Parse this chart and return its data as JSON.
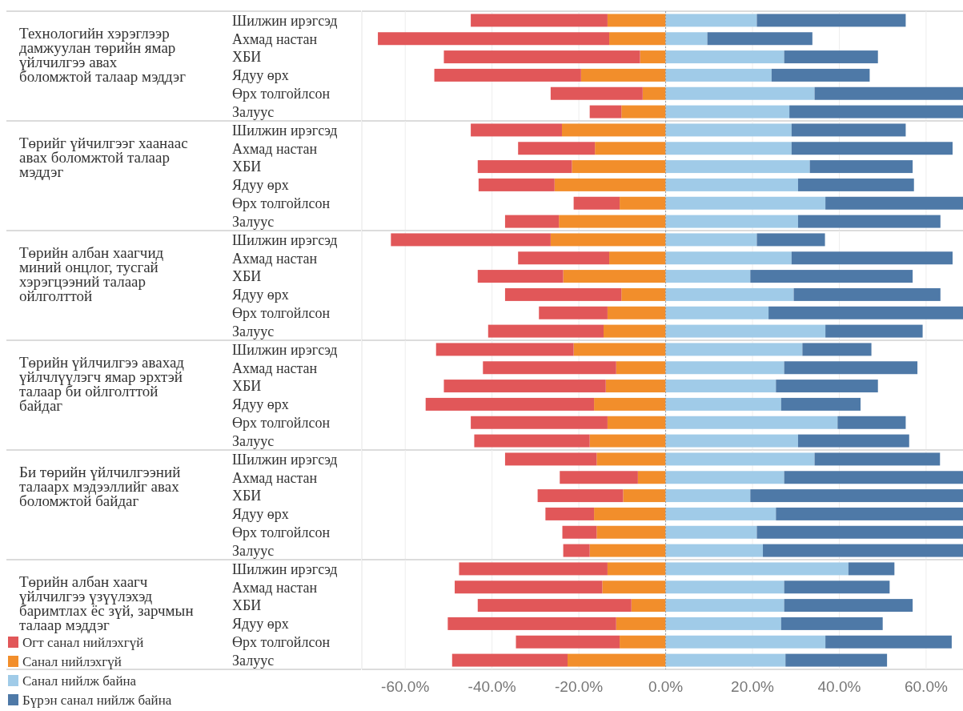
{
  "chart_data": [
    {
      "type": "bar",
      "orientation": "horizontal",
      "stacked": true,
      "title": "Технологийн хэрэглээр\nдамжуулан төрийн ямар\nүйлчилгээ авах\nболомжтой талаар мэддэг",
      "categories": [
        "Шилжин ирэгсэд",
        "Ахмад настан",
        "ХБИ",
        "Ядуу өрх",
        "Өрх толгойлсон",
        "Залуус"
      ],
      "series": [
        {
          "color": "#f28e2b",
          "values": [
            -13.4,
            -13.0,
            -5.9,
            -19.5,
            -5.3,
            -10.2
          ]
        },
        {
          "color": "#e15759",
          "values": [
            -31.5,
            -53.3,
            -45.2,
            -33.8,
            -21.2,
            -7.3
          ]
        },
        {
          "color": "#a0cbe8",
          "values": [
            21.0,
            9.6,
            27.3,
            24.4,
            34.3,
            28.5
          ]
        },
        {
          "color": "#4e79a7",
          "values": [
            34.3,
            24.2,
            21.6,
            22.6,
            34.2,
            40.0
          ]
        }
      ],
      "xlim": [
        -70,
        68.5
      ],
      "xticks": [
        -60,
        -40,
        -20,
        0,
        20,
        40,
        60
      ],
      "grid": "x",
      "tick_labels": "y",
      "legend": false,
      "ref_lines": [
        {
          "axis": "x",
          "value": 0,
          "color": "#999999",
          "line_style": "dotted"
        }
      ]
    },
    {
      "type": "bar",
      "orientation": "horizontal",
      "stacked": true,
      "title": "Төрийг үйчилгээг хаанаас\nавах боломжтой талаар\nмэддэг",
      "categories": [
        "Шилжин ирэгсэд",
        "Ахмад настан",
        "ХБИ",
        "Ядуу өрх",
        "Өрх толгойлсон",
        "Залуус"
      ],
      "series": [
        {
          "color": "#f28e2b",
          "values": [
            -23.9,
            -16.3,
            -21.6,
            -25.6,
            -10.6,
            -24.6
          ]
        },
        {
          "color": "#e15759",
          "values": [
            -21.0,
            -17.7,
            -21.7,
            -17.5,
            -10.6,
            -12.4
          ]
        },
        {
          "color": "#a0cbe8",
          "values": [
            29.0,
            29.0,
            33.2,
            30.5,
            36.8,
            30.5
          ]
        },
        {
          "color": "#4e79a7",
          "values": [
            26.3,
            37.1,
            23.7,
            26.7,
            31.7,
            32.8
          ]
        }
      ],
      "xlim": [
        -70,
        68.5
      ],
      "xticks": [
        -60,
        -40,
        -20,
        0,
        20,
        40,
        60
      ],
      "grid": "x",
      "tick_labels": "y",
      "legend": false,
      "ref_lines": [
        {
          "axis": "x",
          "value": 0,
          "color": "#999999",
          "line_style": "dotted"
        }
      ]
    },
    {
      "type": "bar",
      "orientation": "horizontal",
      "stacked": true,
      "title": "Төрийн албан хаагчид\nминий онцлог, тусгай\nхэрэгцээний талаар\nойлголттой",
      "categories": [
        "Шилжин ирэгсэд",
        "Ахмад настан",
        "ХБИ",
        "Ядуу өрх",
        "Өрх толгойлсон",
        "Залуус"
      ],
      "series": [
        {
          "color": "#f28e2b",
          "values": [
            -26.5,
            -13.0,
            -23.6,
            -10.2,
            -13.4,
            -14.3
          ]
        },
        {
          "color": "#e15759",
          "values": [
            -36.8,
            -21.0,
            -19.7,
            -26.8,
            -15.8,
            -26.6
          ]
        },
        {
          "color": "#a0cbe8",
          "values": [
            21.0,
            29.0,
            19.5,
            29.5,
            23.7,
            36.8
          ]
        },
        {
          "color": "#4e79a7",
          "values": [
            15.7,
            37.1,
            37.4,
            33.8,
            44.8,
            22.4
          ]
        }
      ],
      "xlim": [
        -70,
        68.5
      ],
      "xticks": [
        -60,
        -40,
        -20,
        0,
        20,
        40,
        60
      ],
      "grid": "x",
      "tick_labels": "y",
      "legend": false,
      "ref_lines": [
        {
          "axis": "x",
          "value": 0,
          "color": "#999999",
          "line_style": "dotted"
        }
      ]
    },
    {
      "type": "bar",
      "orientation": "horizontal",
      "stacked": true,
      "title": "Төрийн үйлчилгээ авахад\nүйлчлүүлэгч ямар эрхтэй\nталаар би ойлголттой\nбайдаг",
      "categories": [
        "Шилжин ирэгсэд",
        "Ахмад настан",
        "ХБИ",
        "Ядуу өрх",
        "Өрх толгойлсон",
        "Залуус"
      ],
      "series": [
        {
          "color": "#f28e2b",
          "values": [
            -21.2,
            -11.4,
            -13.8,
            -16.5,
            -13.4,
            -17.5
          ]
        },
        {
          "color": "#e15759",
          "values": [
            -31.7,
            -30.7,
            -37.3,
            -38.8,
            -31.5,
            -26.6
          ]
        },
        {
          "color": "#a0cbe8",
          "values": [
            31.5,
            27.3,
            25.4,
            26.6,
            39.6,
            30.5
          ]
        },
        {
          "color": "#4e79a7",
          "values": [
            15.9,
            30.7,
            23.5,
            18.3,
            15.7,
            25.6
          ]
        }
      ],
      "xlim": [
        -70,
        68.5
      ],
      "xticks": [
        -60,
        -40,
        -20,
        0,
        20,
        40,
        60
      ],
      "grid": "x",
      "tick_labels": "y",
      "legend": false,
      "ref_lines": [
        {
          "axis": "x",
          "value": 0,
          "color": "#999999",
          "line_style": "dotted"
        }
      ]
    },
    {
      "type": "bar",
      "orientation": "horizontal",
      "stacked": true,
      "title": "Би төрийн үйлчилгээний\nталаарх мэдээллийг авах\nболомжтой байдаг",
      "categories": [
        "Шилжин ирэгсэд",
        "Ахмад настан",
        "ХБИ",
        "Ядуу өрх",
        "Өрх толгойлсон",
        "Залуус"
      ],
      "series": [
        {
          "color": "#f28e2b",
          "values": [
            -15.9,
            -6.4,
            -9.8,
            -16.5,
            -15.9,
            -17.5
          ]
        },
        {
          "color": "#e15759",
          "values": [
            -21.1,
            -18.0,
            -19.7,
            -11.2,
            -7.9,
            -6.1
          ]
        },
        {
          "color": "#a0cbe8",
          "values": [
            34.3,
            27.3,
            19.5,
            25.4,
            21.0,
            22.4
          ]
        },
        {
          "color": "#4e79a7",
          "values": [
            28.9,
            41.2,
            49.0,
            43.1,
            47.5,
            46.1
          ]
        }
      ],
      "xlim": [
        -70,
        68.5
      ],
      "xticks": [
        -60,
        -40,
        -20,
        0,
        20,
        40,
        60
      ],
      "grid": "x",
      "tick_labels": "y",
      "legend": false,
      "ref_lines": [
        {
          "axis": "x",
          "value": 0,
          "color": "#999999",
          "line_style": "dotted"
        }
      ]
    },
    {
      "type": "bar",
      "orientation": "horizontal",
      "stacked": true,
      "title": "Төрийн албан хаагч\nүйлчилгээ үзүүлэхэд\nбаримтлах ёс зүй, зарчмын\nталаар мэддэг",
      "categories": [
        "Шилжин ирэгсэд",
        "Ахмад настан",
        "ХБИ",
        "Ядуу өрх",
        "Өрх толгойлсон",
        "Залуус"
      ],
      "series": [
        {
          "name": "Санал нийлэхгүй",
          "color": "#f28e2b",
          "values": [
            -13.4,
            -14.6,
            -7.9,
            -11.4,
            -10.6,
            -22.6
          ]
        },
        {
          "name": "Огт санал нийлэхгүй",
          "color": "#e15759",
          "values": [
            -34.2,
            -34.0,
            -35.4,
            -38.8,
            -23.9,
            -26.6
          ]
        },
        {
          "name": "Санал нийлж байна",
          "color": "#a0cbe8",
          "values": [
            42.1,
            27.3,
            27.3,
            26.6,
            36.8,
            27.6
          ]
        },
        {
          "name": "Бүрэн санал нийлж байна",
          "color": "#4e79a7",
          "values": [
            10.6,
            24.3,
            29.6,
            23.4,
            29.1,
            23.4
          ]
        }
      ],
      "xlim": [
        -70,
        68.5
      ],
      "xticks": [
        {
          "value": -60,
          "label": "-60.0%"
        },
        {
          "value": -40,
          "label": "-40.0%"
        },
        {
          "value": -20,
          "label": "-20.0%"
        },
        {
          "value": 0,
          "label": "0.0%"
        },
        {
          "value": 20,
          "label": "20.0%"
        },
        {
          "value": 40,
          "label": "40.0%"
        },
        {
          "value": 60,
          "label": "60.0%"
        }
      ],
      "grid": "x",
      "legend": "bottom left",
      "ref_lines": [
        {
          "axis": "x",
          "value": 0,
          "color": "#999999",
          "line_style": "dotted"
        }
      ]
    }
  ]
}
